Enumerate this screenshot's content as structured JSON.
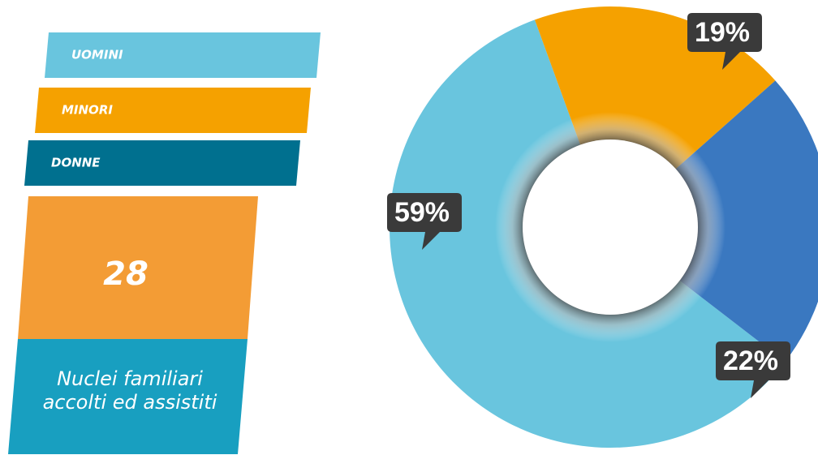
{
  "chart_data": {
    "type": "donut",
    "categories": [
      "UOMINI",
      "MINORI",
      "DONNE"
    ],
    "values": [
      59,
      19,
      22
    ],
    "value_labels": [
      "59%",
      "19%",
      "22%"
    ],
    "colors": [
      "#69c5de",
      "#f5a100",
      "#3a78c0"
    ],
    "legend_colors": [
      "#69c5de",
      "#f5a100",
      "#00708f"
    ]
  },
  "summary": {
    "number": "28",
    "caption": [
      "Nuclei familiari",
      "accolti ed assistiti"
    ]
  }
}
